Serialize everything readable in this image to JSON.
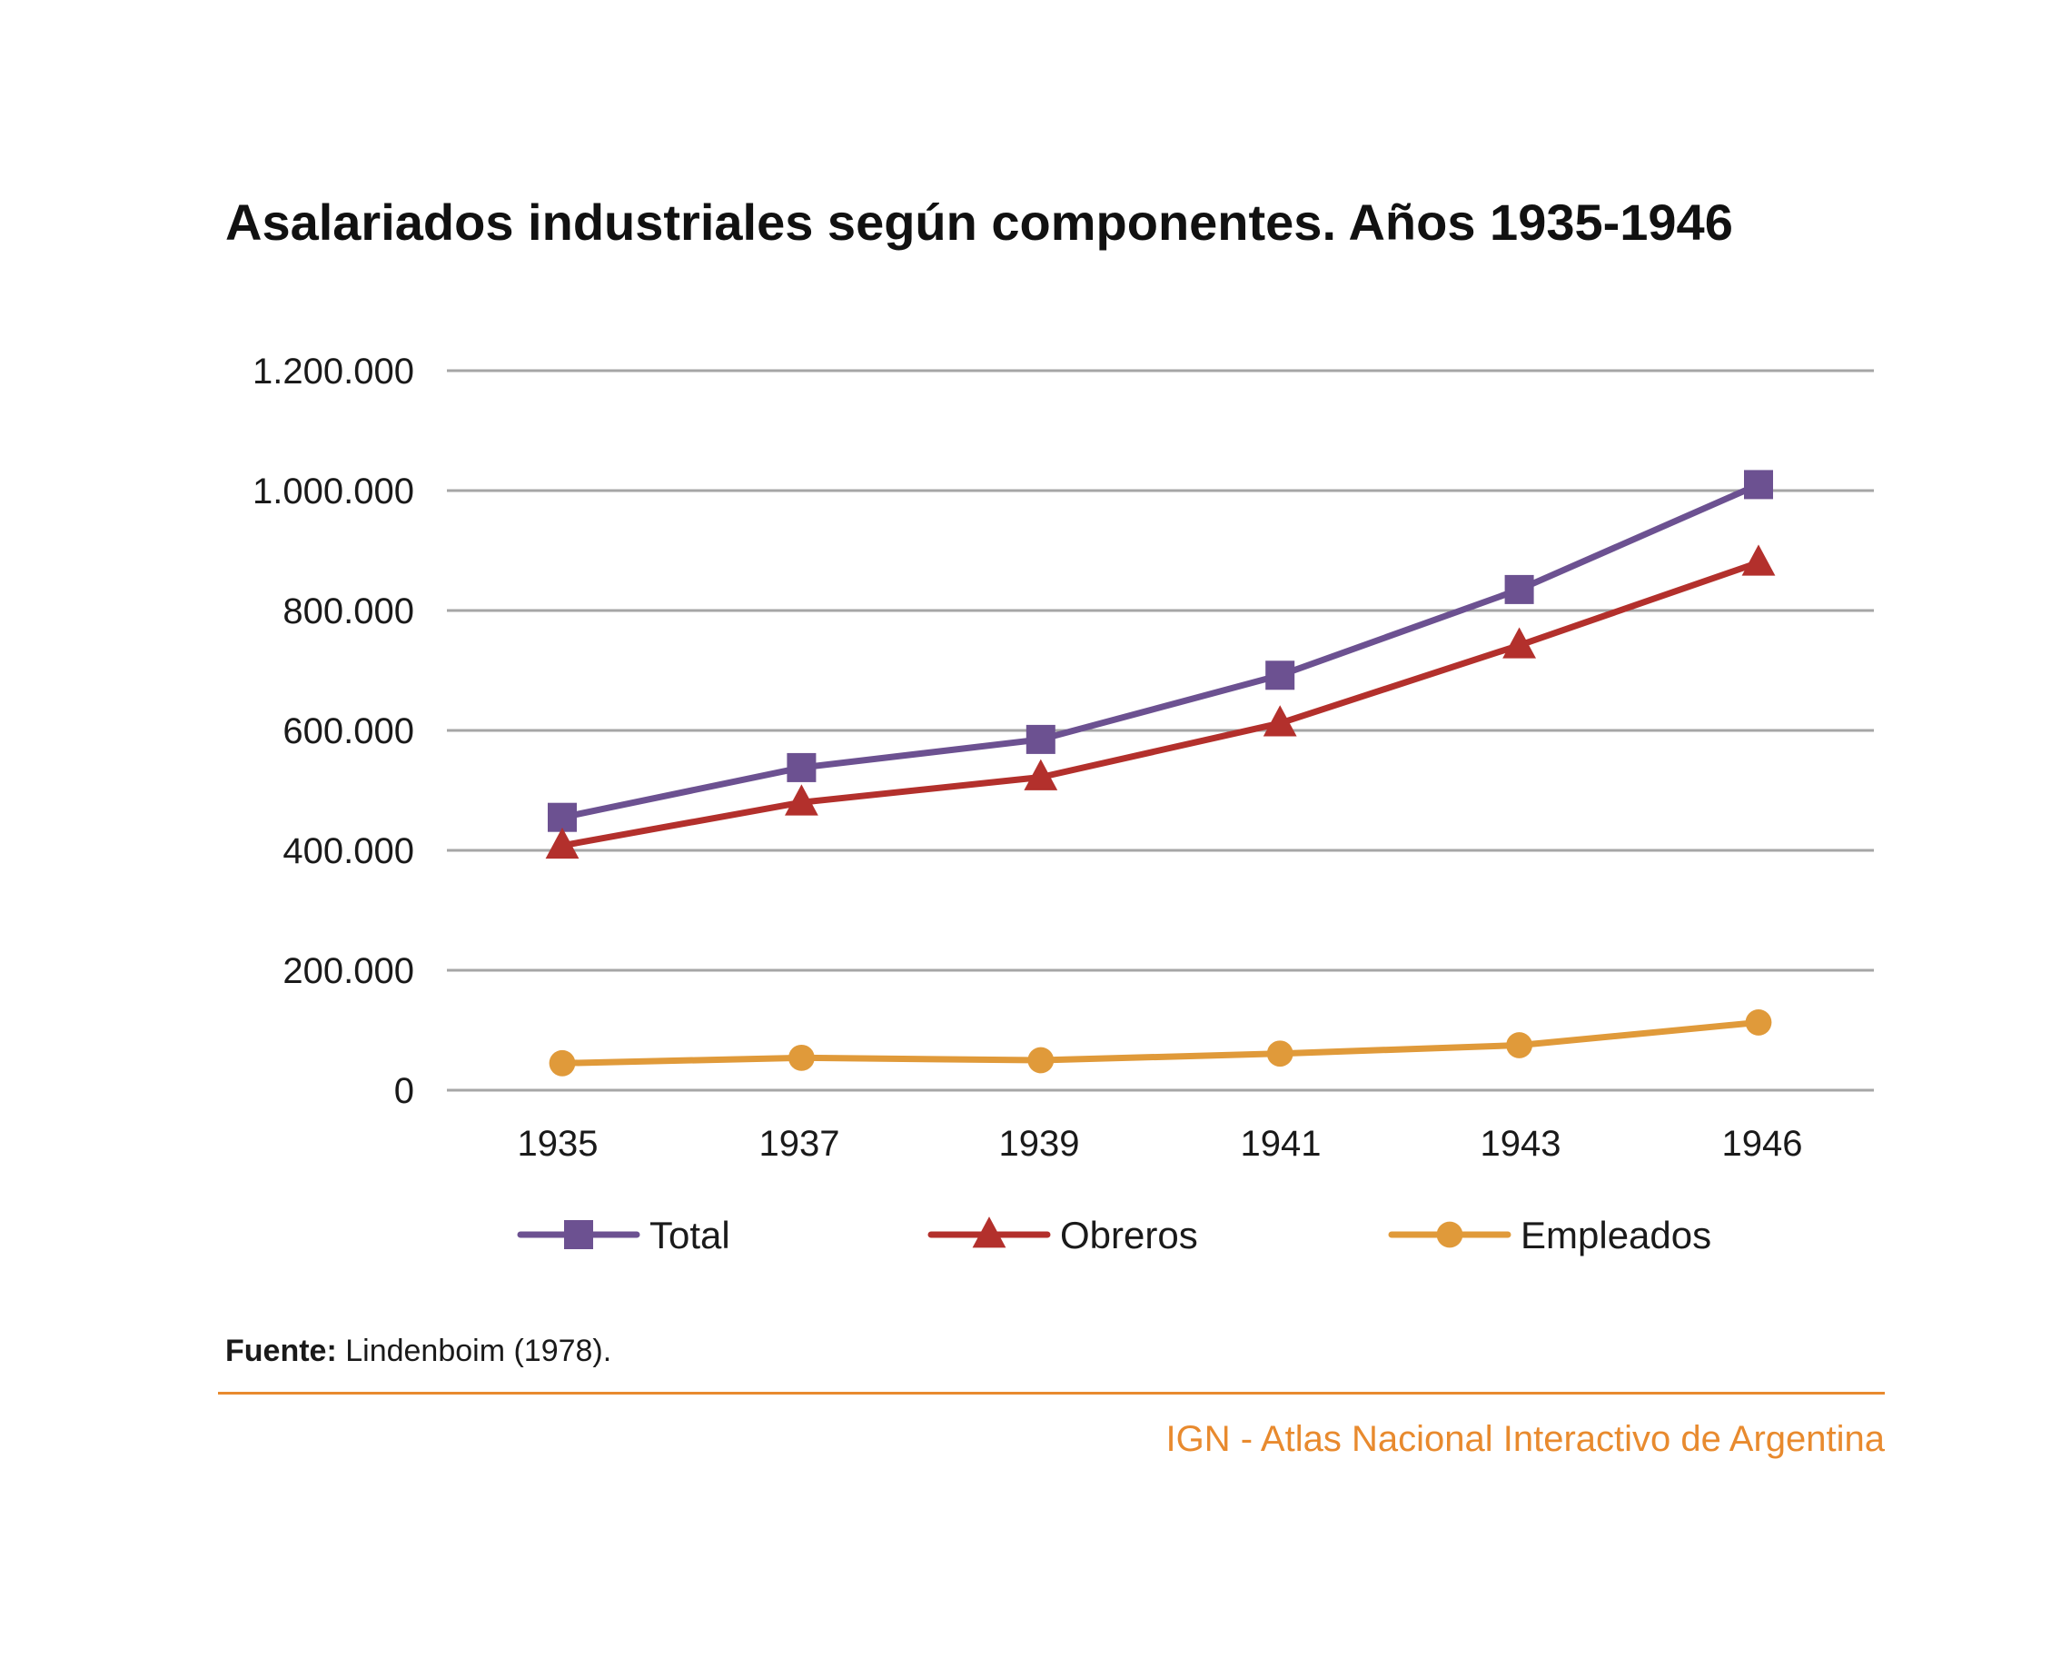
{
  "colors": {
    "total": "#6c5191",
    "obreros": "#b3302c",
    "empleados": "#e09a3a",
    "grid": "#a6a6a6",
    "accent": "#e88a2e"
  },
  "chart_data": {
    "type": "line",
    "title": "Asalariados industriales según componentes. Años 1935-1946",
    "xlabel": "",
    "ylabel": "",
    "categories": [
      "1935",
      "1937",
      "1939",
      "1941",
      "1943",
      "1946"
    ],
    "y_ticks": [
      "0",
      "200.000",
      "400.000",
      "600.000",
      "800.000",
      "1.000.000",
      "1.200.000"
    ],
    "ylim": [
      0,
      1200000
    ],
    "grid": true,
    "legend": "bottom",
    "series": [
      {
        "name": "Total",
        "marker": "square",
        "values": [
          455000,
          538000,
          585000,
          692000,
          835000,
          1010000
        ]
      },
      {
        "name": "Obreros",
        "marker": "triangle",
        "values": [
          408000,
          480000,
          522000,
          612000,
          742000,
          880000
        ]
      },
      {
        "name": "Empleados",
        "marker": "circle",
        "values": [
          45000,
          54000,
          50000,
          61000,
          75000,
          113000
        ]
      }
    ]
  },
  "source": {
    "label": "Fuente:",
    "text": " Lindenboim (1978)."
  },
  "credit": "IGN - Atlas Nacional Interactivo de Argentina"
}
